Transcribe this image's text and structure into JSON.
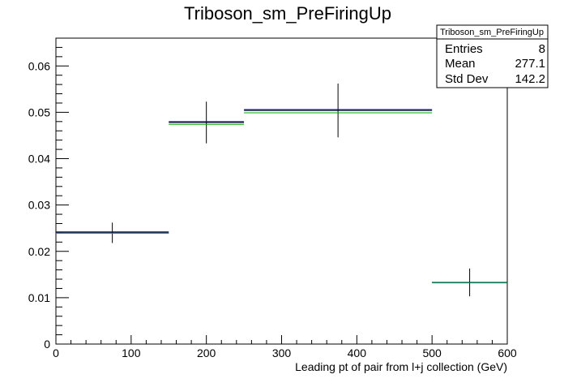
{
  "chart_data": {
    "type": "histogram",
    "title": "Triboson_sm_PreFiringUp",
    "xlabel": "Leading pt of pair from l+j collection (GeV)",
    "ylabel": "",
    "xlim": [
      0,
      600
    ],
    "ylim": [
      0,
      0.066
    ],
    "x_ticks": [
      0,
      100,
      200,
      300,
      400,
      500,
      600
    ],
    "x_tick_labels": [
      "0",
      "100",
      "200",
      "300",
      "400",
      "500",
      "600"
    ],
    "y_ticks": [
      0,
      0.01,
      0.02,
      0.03,
      0.04,
      0.05,
      0.06
    ],
    "y_tick_labels": [
      "0",
      "0.01",
      "0.02",
      "0.03",
      "0.04",
      "0.05",
      "0.06"
    ],
    "grid": false,
    "bin_edges": [
      0,
      150,
      250,
      500,
      600
    ],
    "series": [
      {
        "style": "points-with-errors",
        "color": "#000000",
        "values": [
          0.024,
          0.0478,
          0.0504,
          0.0133
        ],
        "errors": [
          0.0022,
          0.0045,
          0.0058,
          0.003
        ]
      },
      {
        "style": "step",
        "color": "#0000cc",
        "values": [
          0.0242,
          0.048,
          0.0506,
          0.0133
        ]
      },
      {
        "style": "step",
        "color": "#00aa00",
        "values": [
          0.0239,
          0.0474,
          0.0499,
          0.0132
        ]
      }
    ],
    "stats_box": {
      "title": "Triboson_sm_PreFiringUp",
      "placement": "top-right",
      "rows": [
        {
          "label": "Entries",
          "value": "8"
        },
        {
          "label": "Mean",
          "value": "277.1"
        },
        {
          "label": "Std Dev",
          "value": "142.2"
        }
      ]
    }
  }
}
